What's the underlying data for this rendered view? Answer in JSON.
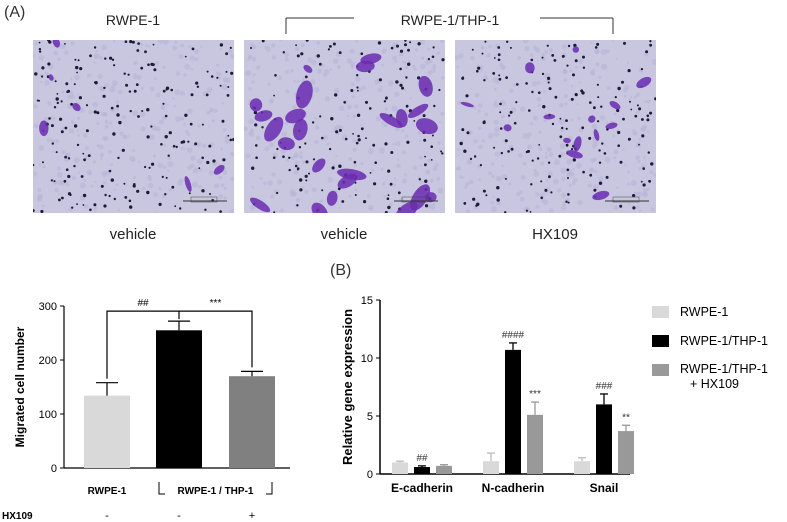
{
  "panel_a": {
    "label": "(A)",
    "group_left": "RWPE-1",
    "group_right": "RWPE-1/THP-1",
    "images": [
      {
        "caption": "vehicle"
      },
      {
        "caption": "vehicle"
      },
      {
        "caption": "HX109"
      }
    ]
  },
  "panel_b": {
    "label": "(B)"
  },
  "chart_data": [
    {
      "type": "bar",
      "categories": [
        "RWPE-1",
        "RWPE-1 / THP-1 (vehicle)",
        "RWPE-1 / THP-1 (HX109)"
      ],
      "values": [
        134,
        255,
        170
      ],
      "errors": [
        24,
        17,
        9
      ],
      "colors": [
        "#d9d9d9",
        "#000000",
        "#808080"
      ],
      "ylabel": "Migrated cell number",
      "ylim": [
        0,
        300
      ],
      "yticks": [
        0,
        100,
        200,
        300
      ],
      "xtick_labels": [
        "RWPE-1",
        "RWPE-1 / THP-1"
      ],
      "treatment_row": {
        "label": "HX109",
        "values": [
          "-",
          "-",
          "+"
        ]
      },
      "significance": [
        {
          "between": [
            0,
            1
          ],
          "text": "##"
        },
        {
          "between": [
            1,
            2
          ],
          "text": "***"
        }
      ]
    },
    {
      "type": "bar",
      "categories": [
        "E-cadherin",
        "N-cadherin",
        "Snail"
      ],
      "series": [
        {
          "name": "RWPE-1",
          "color": "#d9d9d9",
          "values": [
            1.0,
            1.1,
            1.1
          ],
          "errors": [
            0.1,
            0.7,
            0.3
          ],
          "marks": [
            "",
            "",
            ""
          ]
        },
        {
          "name": "RWPE-1/THP-1",
          "color": "#000000",
          "values": [
            0.6,
            10.7,
            6.0
          ],
          "errors": [
            0.1,
            0.6,
            0.9
          ],
          "marks": [
            "##",
            "####",
            "###"
          ]
        },
        {
          "name": "RWPE-1/THP-1 + HX109",
          "color": "#999999",
          "values": [
            0.7,
            5.1,
            3.7
          ],
          "errors": [
            0.1,
            1.1,
            0.5
          ],
          "marks": [
            "",
            "***",
            "**"
          ]
        }
      ],
      "ylabel": "Relative gene expression",
      "ylim": [
        0,
        15
      ],
      "yticks": [
        0,
        5,
        10,
        15
      ],
      "legend_position": "right"
    }
  ]
}
